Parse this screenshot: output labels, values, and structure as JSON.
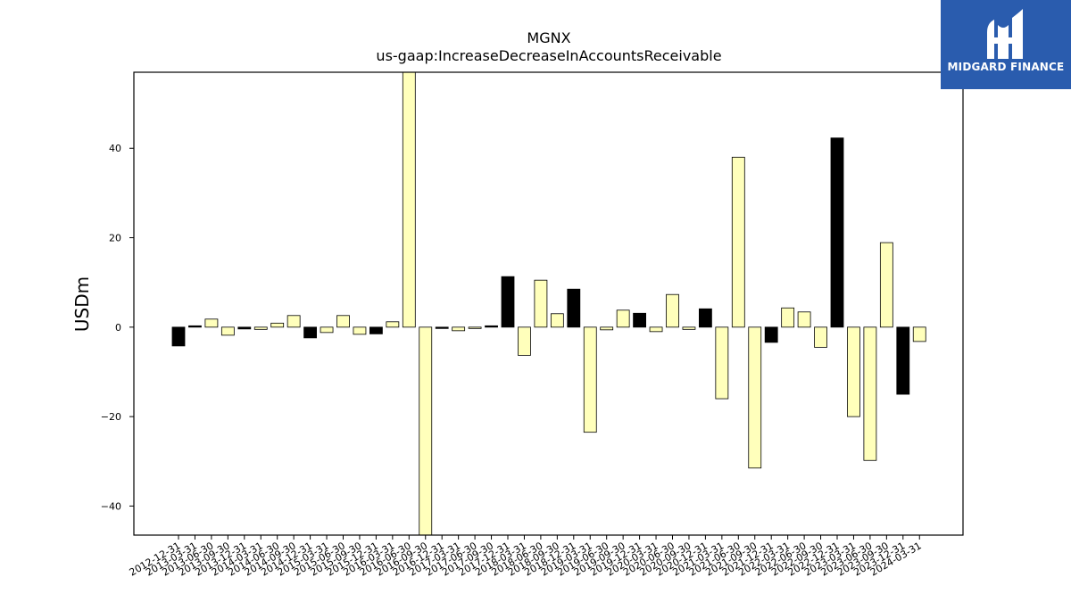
{
  "logo": {
    "text": "MIDGARD FINANCE",
    "icon": "midgard-logo-icon",
    "background": "#2a5cae"
  },
  "chart_data": {
    "type": "bar",
    "title": "MGNX",
    "subtitle": "us-gaap:IncreaseDecreaseInAccountsReceivable",
    "xlabel": "",
    "ylabel": "USDm",
    "ylim": [
      -46.5,
      57
    ],
    "yticks": [
      -40,
      -20,
      0,
      20,
      40
    ],
    "grid": false,
    "colors": {
      "positive_default": "#ffffbb",
      "highlight": "#000000",
      "edge": "#000000"
    },
    "categories": [
      "2012-12-31",
      "2013-03-31",
      "2013-06-30",
      "2013-09-30",
      "2013-12-31",
      "2014-03-31",
      "2014-06-30",
      "2014-09-30",
      "2014-12-31",
      "2015-03-31",
      "2015-06-30",
      "2015-09-30",
      "2015-12-31",
      "2016-03-31",
      "2016-06-30",
      "2016-09-30",
      "2016-12-31",
      "2017-03-31",
      "2017-06-30",
      "2017-09-30",
      "2017-12-31",
      "2018-03-31",
      "2018-06-30",
      "2018-09-30",
      "2018-12-31",
      "2019-03-31",
      "2019-06-30",
      "2019-09-30",
      "2019-12-31",
      "2020-03-31",
      "2020-06-30",
      "2020-09-30",
      "2020-12-31",
      "2021-03-31",
      "2021-06-30",
      "2021-09-30",
      "2021-12-31",
      "2022-03-31",
      "2022-06-30",
      "2022-09-30",
      "2022-12-31",
      "2023-03-31",
      "2023-06-30",
      "2023-09-30",
      "2023-12-31",
      "2024-03-31"
    ],
    "values": [
      -4.2,
      0.3,
      1.8,
      -1.8,
      -0.4,
      -0.5,
      0.9,
      2.6,
      -2.4,
      -1.2,
      2.6,
      -1.6,
      -1.5,
      1.2,
      57,
      -46.5,
      -0.3,
      -0.8,
      -0.3,
      0.3,
      11.3,
      -6.3,
      10.5,
      3.0,
      8.5,
      -23.5,
      -0.6,
      3.8,
      3.1,
      -1.0,
      7.3,
      -0.5,
      4.1,
      -16.0,
      38.0,
      -31.5,
      -3.4,
      4.3,
      3.4,
      -4.5,
      42.3,
      -20.0,
      -29.8,
      18.9,
      -15.0,
      -3.2
    ],
    "highlight": [
      true,
      true,
      false,
      false,
      true,
      false,
      false,
      false,
      true,
      false,
      false,
      false,
      true,
      false,
      false,
      false,
      true,
      false,
      false,
      true,
      true,
      false,
      false,
      false,
      true,
      false,
      false,
      false,
      true,
      false,
      false,
      false,
      true,
      false,
      false,
      false,
      true,
      false,
      false,
      false,
      true,
      false,
      false,
      false,
      true,
      false
    ]
  }
}
